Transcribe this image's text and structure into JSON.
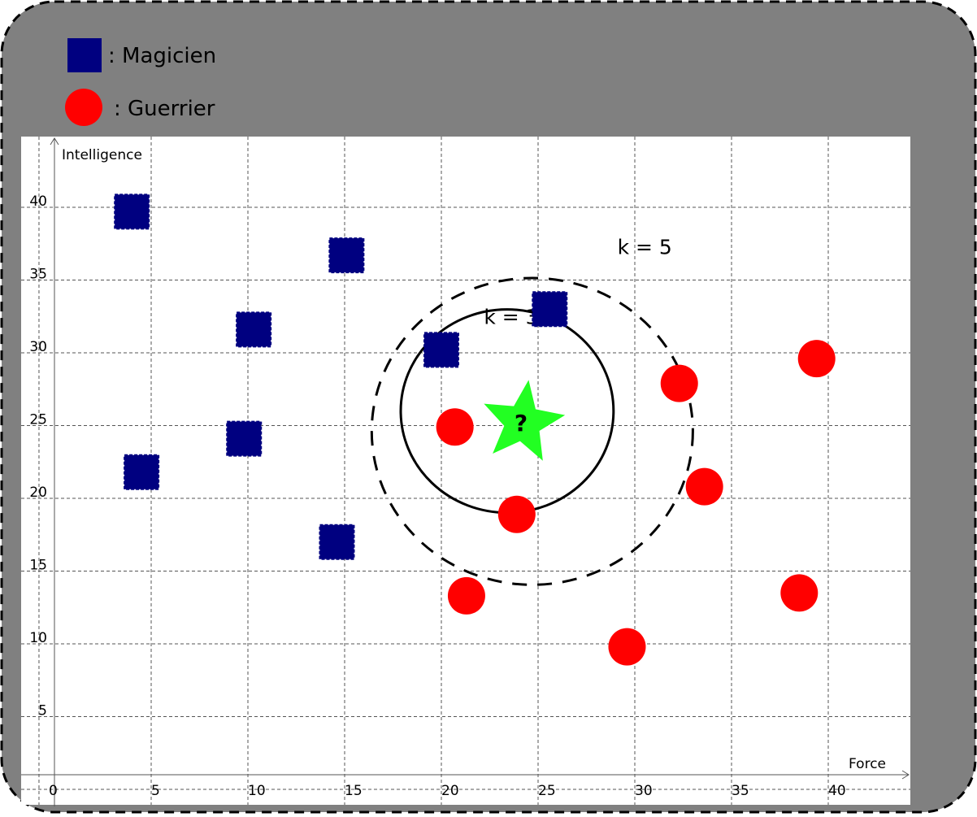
{
  "legend": [
    {
      "label": ": Magicien",
      "shape": "square",
      "color": "#000080"
    },
    {
      "label": ": Guerrier",
      "shape": "circle",
      "color": "#ff0000"
    }
  ],
  "colors": {
    "frame": "#808080",
    "magicien": "#000080",
    "guerrier": "#ff0000",
    "query": "#22ff22",
    "grid": "#555555"
  },
  "chart_data": {
    "type": "scatter",
    "xlabel": "Force",
    "ylabel": "Intelligence",
    "xlim": [
      -1.5,
      44
    ],
    "ylim": [
      -1,
      44
    ],
    "x_ticks": [
      0,
      5,
      10,
      15,
      20,
      25,
      30,
      35,
      40
    ],
    "y_ticks": [
      5,
      10,
      15,
      20,
      25,
      30,
      35,
      40
    ],
    "grid": true,
    "legend_position": "top-left",
    "series": [
      {
        "name": "Magicien",
        "marker": "square",
        "points": [
          {
            "x": 4.0,
            "y": 39.7
          },
          {
            "x": 15.1,
            "y": 36.7
          },
          {
            "x": 10.3,
            "y": 31.6
          },
          {
            "x": 20.0,
            "y": 30.2
          },
          {
            "x": 25.6,
            "y": 33.0
          },
          {
            "x": 9.8,
            "y": 24.1
          },
          {
            "x": 4.5,
            "y": 21.8
          },
          {
            "x": 14.6,
            "y": 17.0
          }
        ]
      },
      {
        "name": "Guerrier",
        "marker": "circle",
        "points": [
          {
            "x": 20.7,
            "y": 24.9
          },
          {
            "x": 23.9,
            "y": 18.9
          },
          {
            "x": 21.3,
            "y": 13.3
          },
          {
            "x": 29.6,
            "y": 9.8
          },
          {
            "x": 32.3,
            "y": 27.9
          },
          {
            "x": 33.6,
            "y": 20.8
          },
          {
            "x": 39.4,
            "y": 29.6
          },
          {
            "x": 38.5,
            "y": 13.5
          }
        ]
      }
    ],
    "query_point": {
      "x": 24.2,
      "y": 25.2,
      "label": "?"
    },
    "annotations": [
      {
        "label": "k = 3",
        "style": "solid",
        "cx": 23.4,
        "cy": 26.0,
        "r": 5.5,
        "label_x": 22.2,
        "label_y": 32.5
      },
      {
        "label": "k = 5",
        "style": "dashed",
        "cx": 24.7,
        "cy": 24.6,
        "r": 8.3,
        "label_x": 29.1,
        "label_y": 37.3
      }
    ]
  }
}
